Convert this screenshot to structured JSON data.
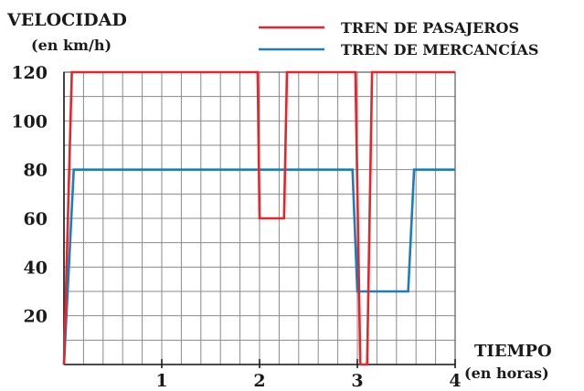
{
  "chart_data": {
    "type": "line",
    "title": "",
    "ylabel": "VELOCIDAD",
    "ylabel_unit": "(en km/h)",
    "xlabel": "TIEMPO",
    "xlabel_unit": "(en horas)",
    "xlim": [
      0,
      4
    ],
    "ylim": [
      0,
      120
    ],
    "x_ticks": [
      "1",
      "2",
      "3",
      "4"
    ],
    "y_ticks": [
      "20",
      "40",
      "60",
      "80",
      "100",
      "120"
    ],
    "grid": true,
    "legend_position": "top-right",
    "series": [
      {
        "name": "TREN DE PASAJEROS",
        "color": "#e3262d",
        "points": [
          [
            0,
            0
          ],
          [
            0.08,
            120
          ],
          [
            1.98,
            120
          ],
          [
            2.0,
            60
          ],
          [
            2.25,
            60
          ],
          [
            2.28,
            120
          ],
          [
            2.98,
            120
          ],
          [
            3.03,
            0
          ],
          [
            3.1,
            0
          ],
          [
            3.15,
            120
          ],
          [
            4.0,
            120
          ]
        ]
      },
      {
        "name": "TREN DE MERCANCÍAS",
        "color": "#1c7dbd",
        "points": [
          [
            0,
            0
          ],
          [
            0.1,
            80
          ],
          [
            2.95,
            80
          ],
          [
            3.0,
            30
          ],
          [
            3.52,
            30
          ],
          [
            3.58,
            80
          ],
          [
            4.0,
            80
          ]
        ]
      }
    ]
  }
}
